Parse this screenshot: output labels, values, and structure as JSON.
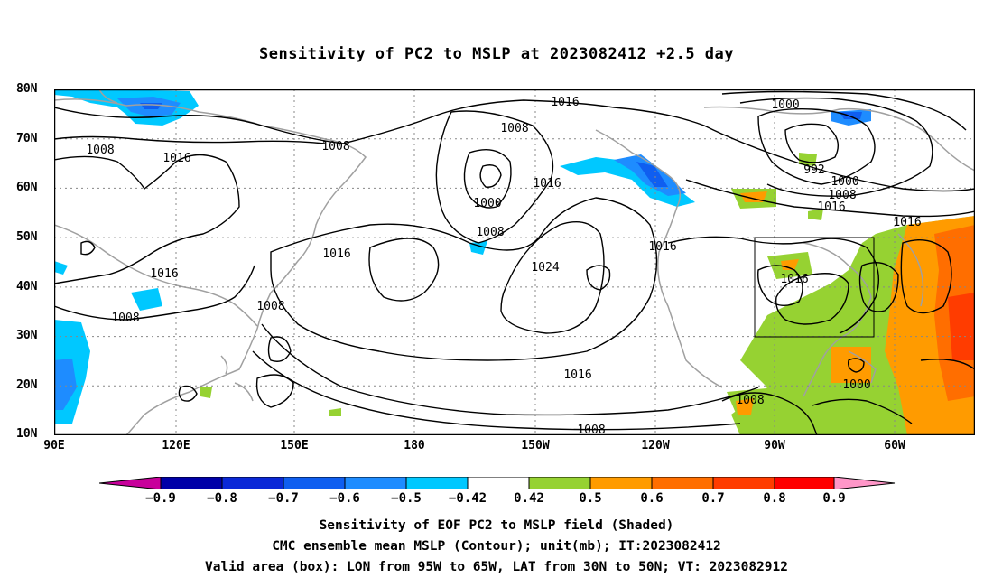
{
  "title": "Sensitivity of PC2 to MSLP at 2023082412 +2.5 day",
  "lat_ticks": [
    "80N",
    "70N",
    "60N",
    "50N",
    "40N",
    "30N",
    "20N",
    "10N"
  ],
  "lon_ticks": [
    "90E",
    "120E",
    "150E",
    "180",
    "150W",
    "120W",
    "90W",
    "60W"
  ],
  "colorbar": {
    "labels": [
      "−0.9",
      "−0.8",
      "−0.7",
      "−0.6",
      "−0.5",
      "−0.42",
      "0.42",
      "0.5",
      "0.6",
      "0.7",
      "0.8",
      "0.9"
    ],
    "colors": [
      "#c8009b",
      "#0000a8",
      "#0a28d7",
      "#0f5ef0",
      "#1e8cff",
      "#00c8ff",
      "#ffffff",
      "#96d232",
      "#ff9b00",
      "#ff6e00",
      "#ff3c00",
      "#ff0000",
      "#ff96c8"
    ]
  },
  "contour_labels": {
    "c1": "1016",
    "c2": "1008",
    "c3": "1000",
    "c4": "1008",
    "c5": "1016",
    "c6": "1008",
    "c7": "1016",
    "c8": "1000",
    "c9": "1008",
    "c10": "1016",
    "c11": "1024",
    "c12": "1016",
    "c13": "1016",
    "c14": "1000",
    "c15": "992",
    "c16": "1000",
    "c17": "1008",
    "c18": "1016",
    "c19": "1016",
    "c20": "1016",
    "c21": "1008",
    "c22": "1008",
    "c23": "1008",
    "c24": "1016",
    "c25": "1008"
  },
  "footer": {
    "line1": "Sensitivity of EOF PC2 to MSLP field (Shaded)",
    "line2": "CMC ensemble mean MSLP (Contour); unit(mb); IT:2023082412",
    "line3": "Valid area (box): LON from 95W to 65W, LAT from 30N to 50N; VT: 2023082912"
  }
}
